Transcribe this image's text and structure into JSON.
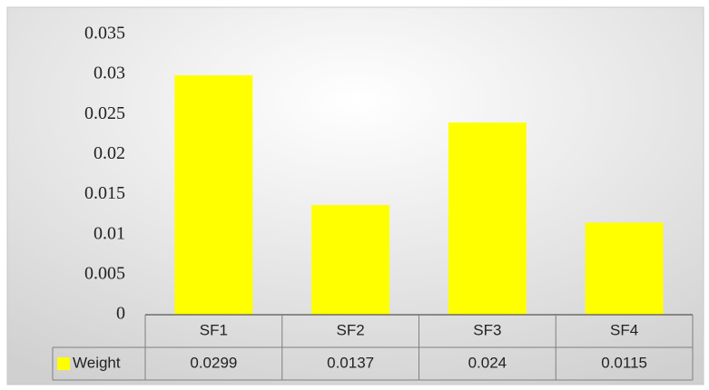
{
  "chart_data": {
    "type": "bar",
    "categories": [
      "SF1",
      "SF2",
      "SF3",
      "SF4"
    ],
    "series": [
      {
        "name": "Weight",
        "values": [
          0.0299,
          0.0137,
          0.024,
          0.0115
        ]
      }
    ],
    "value_labels": [
      "0.0299",
      "0.0137",
      "0.024",
      "0.0115"
    ],
    "y_ticks": [
      "0",
      "0.005",
      "0.01",
      "0.015",
      "0.02",
      "0.025",
      "0.03",
      "0.035"
    ],
    "ylim": [
      0,
      0.035
    ],
    "title": "",
    "xlabel": "",
    "ylabel": "",
    "grid": false,
    "legend": "data-table",
    "bar_color": "#FFFF00",
    "background_gradient": [
      "#FFFFFF",
      "#D0D0D0"
    ]
  }
}
